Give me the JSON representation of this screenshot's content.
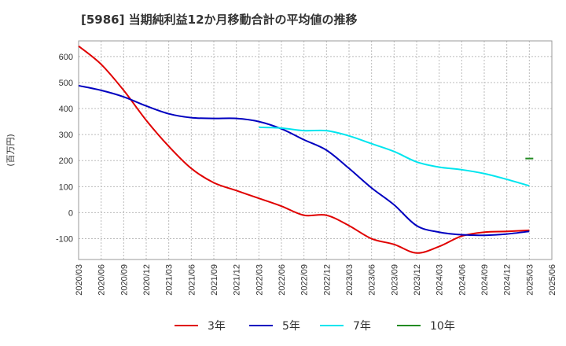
{
  "chart_data": {
    "type": "line",
    "title": "[5986]  当期純利益12か月移動合計の平均値の推移",
    "ylabel": "(百万円)",
    "xlabel": "",
    "ylim": [
      -180,
      660
    ],
    "yticks": [
      -100,
      0,
      100,
      200,
      300,
      400,
      500,
      600
    ],
    "x": [
      "2020/03",
      "2020/06",
      "2020/09",
      "2020/12",
      "2021/03",
      "2021/06",
      "2021/09",
      "2021/12",
      "2022/03",
      "2022/06",
      "2022/09",
      "2022/12",
      "2023/03",
      "2023/06",
      "2023/09",
      "2023/12",
      "2024/03",
      "2024/06",
      "2024/09",
      "2024/12",
      "2025/03",
      "2025/06"
    ],
    "grid": true,
    "legend_position": "bottom",
    "series": [
      {
        "name": "3年",
        "color": "#e00000",
        "values": [
          640,
          570,
          470,
          355,
          255,
          170,
          115,
          85,
          55,
          25,
          -10,
          -10,
          -50,
          -100,
          -122,
          -155,
          -130,
          -90,
          -75,
          -72,
          -68,
          null
        ]
      },
      {
        "name": "5年",
        "color": "#0000c0",
        "values": [
          488,
          470,
          445,
          410,
          380,
          365,
          362,
          362,
          350,
          322,
          280,
          240,
          170,
          95,
          30,
          -50,
          -75,
          -85,
          -87,
          -82,
          -72,
          null
        ]
      },
      {
        "name": "7年",
        "color": "#00e5ee",
        "values": [
          null,
          null,
          null,
          null,
          null,
          null,
          null,
          null,
          328,
          325,
          315,
          315,
          295,
          265,
          235,
          195,
          175,
          165,
          150,
          128,
          103,
          null
        ]
      },
      {
        "name": "10年",
        "color": "#228b22",
        "values": [
          null,
          null,
          null,
          null,
          null,
          null,
          null,
          null,
          null,
          null,
          null,
          null,
          null,
          null,
          null,
          null,
          null,
          null,
          null,
          null,
          208,
          null
        ]
      }
    ]
  }
}
